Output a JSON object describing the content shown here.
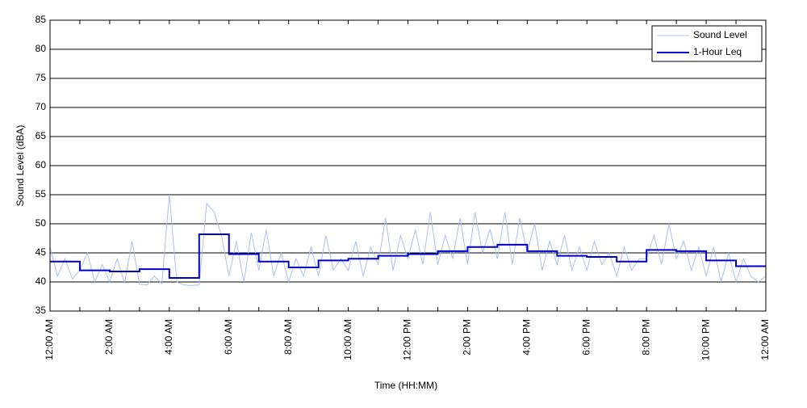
{
  "chart_data": {
    "type": "line",
    "xlabel": "Time (HH:MM)",
    "ylabel": "Sound Level (dBA)",
    "xlim": [
      0,
      24
    ],
    "ylim": [
      35,
      85
    ],
    "yticks": [
      35,
      40,
      45,
      50,
      55,
      60,
      65,
      70,
      75,
      80,
      85
    ],
    "xticks": [
      {
        "value": 0,
        "label": "12:00 AM"
      },
      {
        "value": 2,
        "label": "2:00 AM"
      },
      {
        "value": 4,
        "label": "4:00 AM"
      },
      {
        "value": 6,
        "label": "6:00 AM"
      },
      {
        "value": 8,
        "label": "8:00 AM"
      },
      {
        "value": 10,
        "label": "10:00 AM"
      },
      {
        "value": 12,
        "label": "12:00 PM"
      },
      {
        "value": 14,
        "label": "2:00 PM"
      },
      {
        "value": 16,
        "label": "4:00 PM"
      },
      {
        "value": 18,
        "label": "6:00 PM"
      },
      {
        "value": 20,
        "label": "8:00 PM"
      },
      {
        "value": 22,
        "label": "10:00 PM"
      },
      {
        "value": 24,
        "label": "12:00 AM"
      }
    ],
    "xminor_ticks": [
      1,
      3,
      5,
      7,
      9,
      11,
      13,
      15,
      17,
      19,
      21,
      23
    ],
    "grid": true,
    "legend": "upper right",
    "series": [
      {
        "name": "Sound Level",
        "color": "#a8c0f0",
        "x": [
          0,
          0.25,
          0.5,
          0.75,
          1,
          1.25,
          1.5,
          1.75,
          2,
          2.25,
          2.5,
          2.75,
          3,
          3.25,
          3.5,
          3.75,
          4,
          4.25,
          4.5,
          4.75,
          5,
          5.25,
          5.5,
          5.75,
          6,
          6.25,
          6.5,
          6.75,
          7,
          7.25,
          7.5,
          7.75,
          8,
          8.25,
          8.5,
          8.75,
          9,
          9.25,
          9.5,
          9.75,
          10,
          10.25,
          10.5,
          10.75,
          11,
          11.25,
          11.5,
          11.75,
          12,
          12.25,
          12.5,
          12.75,
          13,
          13.25,
          13.5,
          13.75,
          14,
          14.25,
          14.5,
          14.75,
          15,
          15.25,
          15.5,
          15.75,
          16,
          16.25,
          16.5,
          16.75,
          17,
          17.25,
          17.5,
          17.75,
          18,
          18.25,
          18.5,
          18.75,
          19,
          19.25,
          19.5,
          19.75,
          20,
          20.25,
          20.5,
          20.75,
          21,
          21.25,
          21.5,
          21.75,
          22,
          22.25,
          22.5,
          22.75,
          23,
          23.25,
          23.5,
          23.75,
          24
        ],
        "values": [
          46,
          41,
          44,
          40.5,
          42,
          45,
          40,
          43,
          40,
          44,
          39.8,
          47,
          39.6,
          39.5,
          41,
          39.7,
          55,
          40,
          39.5,
          39.4,
          39.5,
          53.5,
          52,
          48,
          41,
          47,
          40,
          48.5,
          42,
          49,
          41,
          45,
          40,
          44,
          41,
          46,
          41,
          48,
          42,
          44,
          42,
          47,
          41,
          46,
          43,
          51,
          42,
          48,
          44,
          49,
          43,
          52,
          43,
          48,
          44,
          51,
          43,
          52,
          45,
          49,
          44,
          52,
          43,
          51,
          45,
          50,
          42,
          47,
          43,
          48,
          42,
          46,
          42,
          47,
          43,
          45,
          41,
          46,
          42,
          44,
          44,
          48,
          43,
          50,
          44,
          47,
          42,
          46,
          41,
          46,
          40,
          45,
          40,
          44,
          41,
          40,
          41
        ]
      },
      {
        "name": "1-Hour Leq",
        "color": "#0000cc",
        "step": "post",
        "x": [
          0,
          1,
          2,
          3,
          4,
          5,
          6,
          7,
          8,
          9,
          10,
          11,
          12,
          13,
          14,
          15,
          16,
          17,
          18,
          19,
          20,
          21,
          22,
          23
        ],
        "values": [
          43.5,
          42,
          41.8,
          42.2,
          40.7,
          48.2,
          44.8,
          43.5,
          42.5,
          43.7,
          44,
          44.5,
          44.8,
          45.3,
          46,
          46.4,
          45.3,
          44.5,
          44.3,
          43.5,
          45.5,
          45.3,
          43.7,
          42.7
        ]
      }
    ]
  }
}
